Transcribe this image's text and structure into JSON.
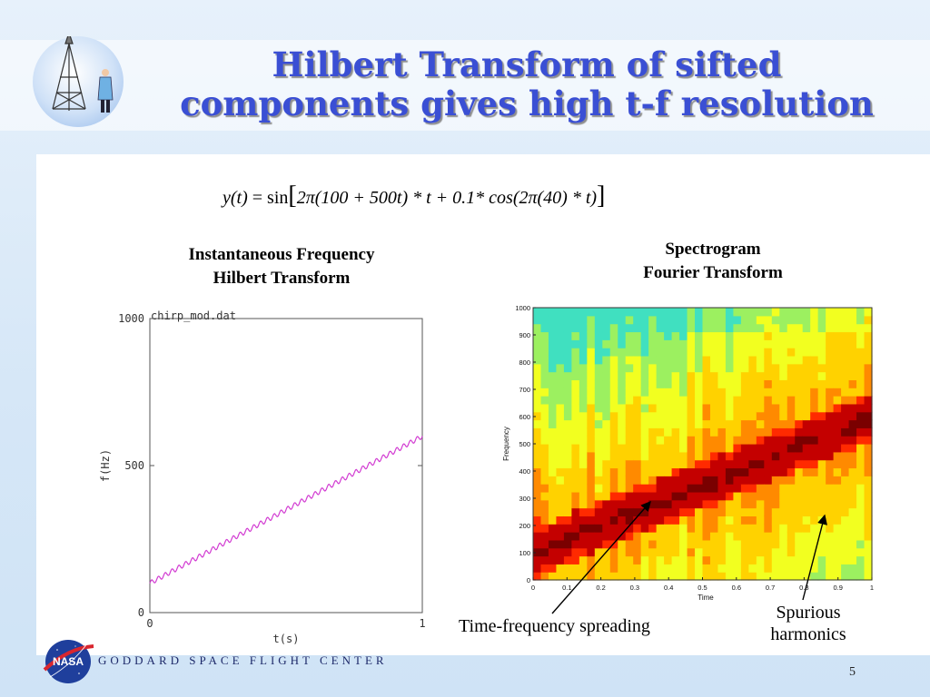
{
  "slide": {
    "title_line1": "Hilbert Transform of sifted",
    "title_line2": "components gives high t-f resolution",
    "page_number": "5",
    "footer": "GODDARD SPACE FLIGHT CENTER",
    "footer_logo_text": "NASA"
  },
  "equation": {
    "lhs": "y(t)",
    "eq": " = sin",
    "body": "2π(100 + 500t) * t + 0.1* cos(2π(40) * t)"
  },
  "left_heading": {
    "line1": "Instantaneous Frequency",
    "line2": "Hilbert Transform"
  },
  "right_heading": {
    "line1": "Spectrogram",
    "line2": "Fourier Transform"
  },
  "annotations": {
    "spreading": "Time-frequency spreading",
    "spurious_line1": "Spurious",
    "spurious_line2": "harmonics"
  },
  "chart_data": [
    {
      "type": "line",
      "title": "chirp_mod.dat",
      "xlabel": "t(s)",
      "ylabel": "f(Hz)",
      "xlim": [
        0,
        1
      ],
      "ylim": [
        0,
        1000
      ],
      "xticks": [
        "0",
        "1"
      ],
      "yticks": [
        "0",
        "500",
        "1000"
      ],
      "series": [
        {
          "color": "#d23cd2",
          "x": [
            0,
            0.1,
            0.2,
            0.3,
            0.4,
            0.5,
            0.6,
            0.7,
            0.8,
            0.9,
            1.0
          ],
          "y": [
            100,
            150,
            200,
            250,
            300,
            350,
            400,
            450,
            500,
            550,
            600
          ],
          "ripple_hz": 40,
          "ripple_amplitude": 8
        }
      ],
      "grid": false
    },
    {
      "type": "heatmap",
      "xlabel": "Time",
      "ylabel": "Frequency",
      "xlim": [
        0,
        1
      ],
      "ylim": [
        0,
        1000
      ],
      "xticks": [
        "0",
        "0.1",
        "0.2",
        "0.3",
        "0.4",
        "0.5",
        "0.6",
        "0.7",
        "0.8",
        "0.9",
        "1"
      ],
      "yticks": [
        "0",
        "100",
        "200",
        "300",
        "400",
        "500",
        "600",
        "700",
        "800",
        "900",
        "1000"
      ],
      "ridge": {
        "freq_at_t0": 100,
        "freq_at_t1": 600
      },
      "colormap": [
        "#7a0000",
        "#c40000",
        "#ff2a00",
        "#ff8a00",
        "#ffd200",
        "#f2ff20",
        "#9cf060",
        "#40e0c0"
      ]
    }
  ]
}
